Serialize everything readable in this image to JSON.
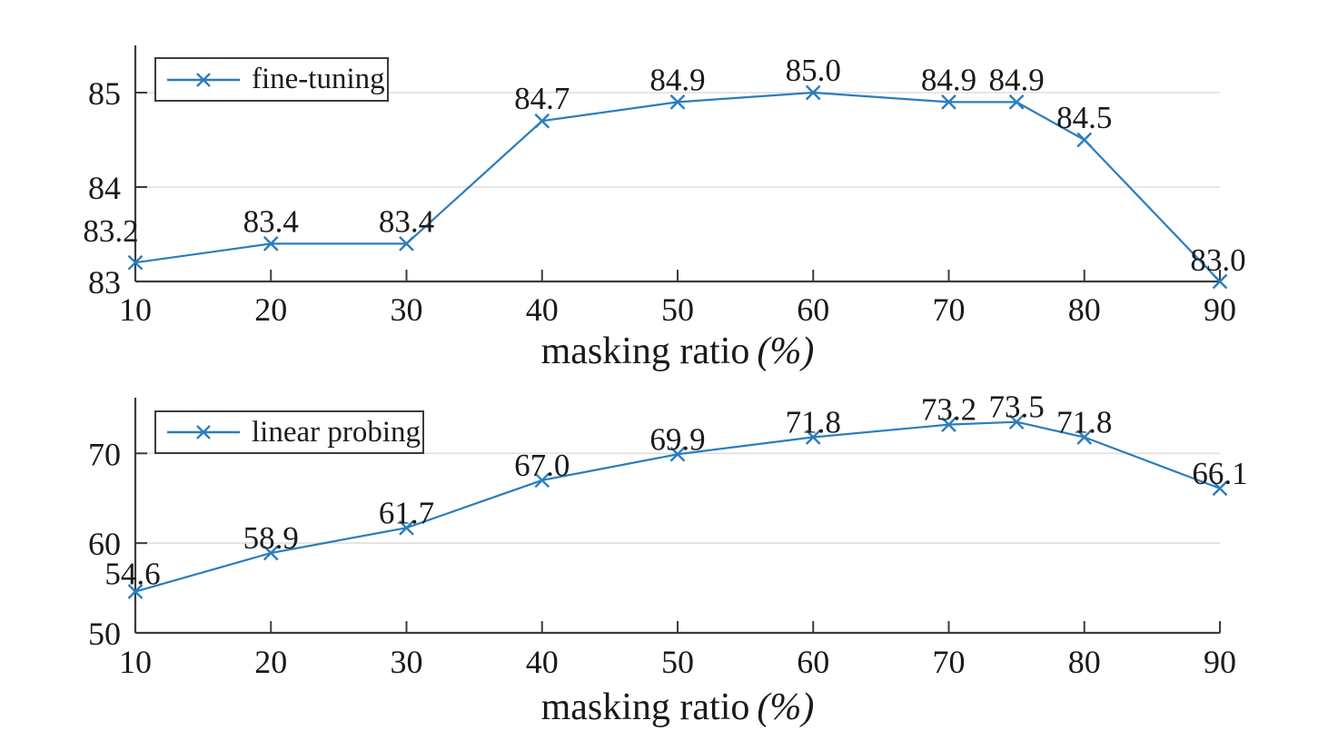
{
  "figure": {
    "background": "#ffffff"
  },
  "colors": {
    "line": "#2a7dbd",
    "grid": "#e2e2e2",
    "axis": "#3c3c3c",
    "text": "#1a1a1a",
    "legend_border": "#3c3c3c",
    "legend_background": "#ffffff"
  },
  "chart_data": [
    {
      "type": "line",
      "title": "",
      "xlabel": "masking ratio (%)",
      "xlabel_text": "masking ratio",
      "xlabel_unit": "(%)",
      "ylabel": "",
      "legend_entries": [
        "fine-tuning"
      ],
      "legend_position": "top-left",
      "legend_marker": "x",
      "grid": "horizontal",
      "marker": "x",
      "x": [
        10,
        20,
        30,
        40,
        50,
        60,
        70,
        75,
        80,
        90
      ],
      "xticks": [
        10,
        20,
        30,
        40,
        50,
        60,
        70,
        80,
        90
      ],
      "yticks": [
        83,
        84,
        85
      ],
      "xlim": [
        10,
        90
      ],
      "ylim": [
        83,
        85.5
      ],
      "series": [
        {
          "name": "fine-tuning",
          "values": [
            83.2,
            83.4,
            83.4,
            84.7,
            84.9,
            85.0,
            84.9,
            84.9,
            84.5,
            83.0
          ],
          "point_labels": [
            "83.2",
            "83.4",
            "83.4",
            "84.7",
            "84.9",
            "85.0",
            "84.9",
            "84.9",
            "84.5",
            "83.0"
          ]
        }
      ]
    },
    {
      "type": "line",
      "title": "",
      "xlabel": "masking ratio (%)",
      "xlabel_text": "masking ratio",
      "xlabel_unit": "(%)",
      "ylabel": "",
      "legend_entries": [
        "linear probing"
      ],
      "legend_position": "top-left",
      "legend_marker": "x",
      "grid": "horizontal",
      "marker": "x",
      "x": [
        10,
        20,
        30,
        40,
        50,
        60,
        70,
        75,
        80,
        90
      ],
      "xticks": [
        10,
        20,
        30,
        40,
        50,
        60,
        70,
        80,
        90
      ],
      "yticks": [
        50,
        60,
        70
      ],
      "xlim": [
        10,
        90
      ],
      "ylim": [
        50,
        76.2
      ],
      "series": [
        {
          "name": "linear probing",
          "values": [
            54.6,
            58.9,
            61.7,
            67.0,
            69.9,
            71.8,
            73.2,
            73.5,
            71.8,
            66.1
          ],
          "point_labels": [
            "54.6",
            "58.9",
            "61.7",
            "67.0",
            "69.9",
            "71.8",
            "73.2",
            "73.5",
            "71.8",
            "66.1"
          ]
        }
      ]
    }
  ]
}
